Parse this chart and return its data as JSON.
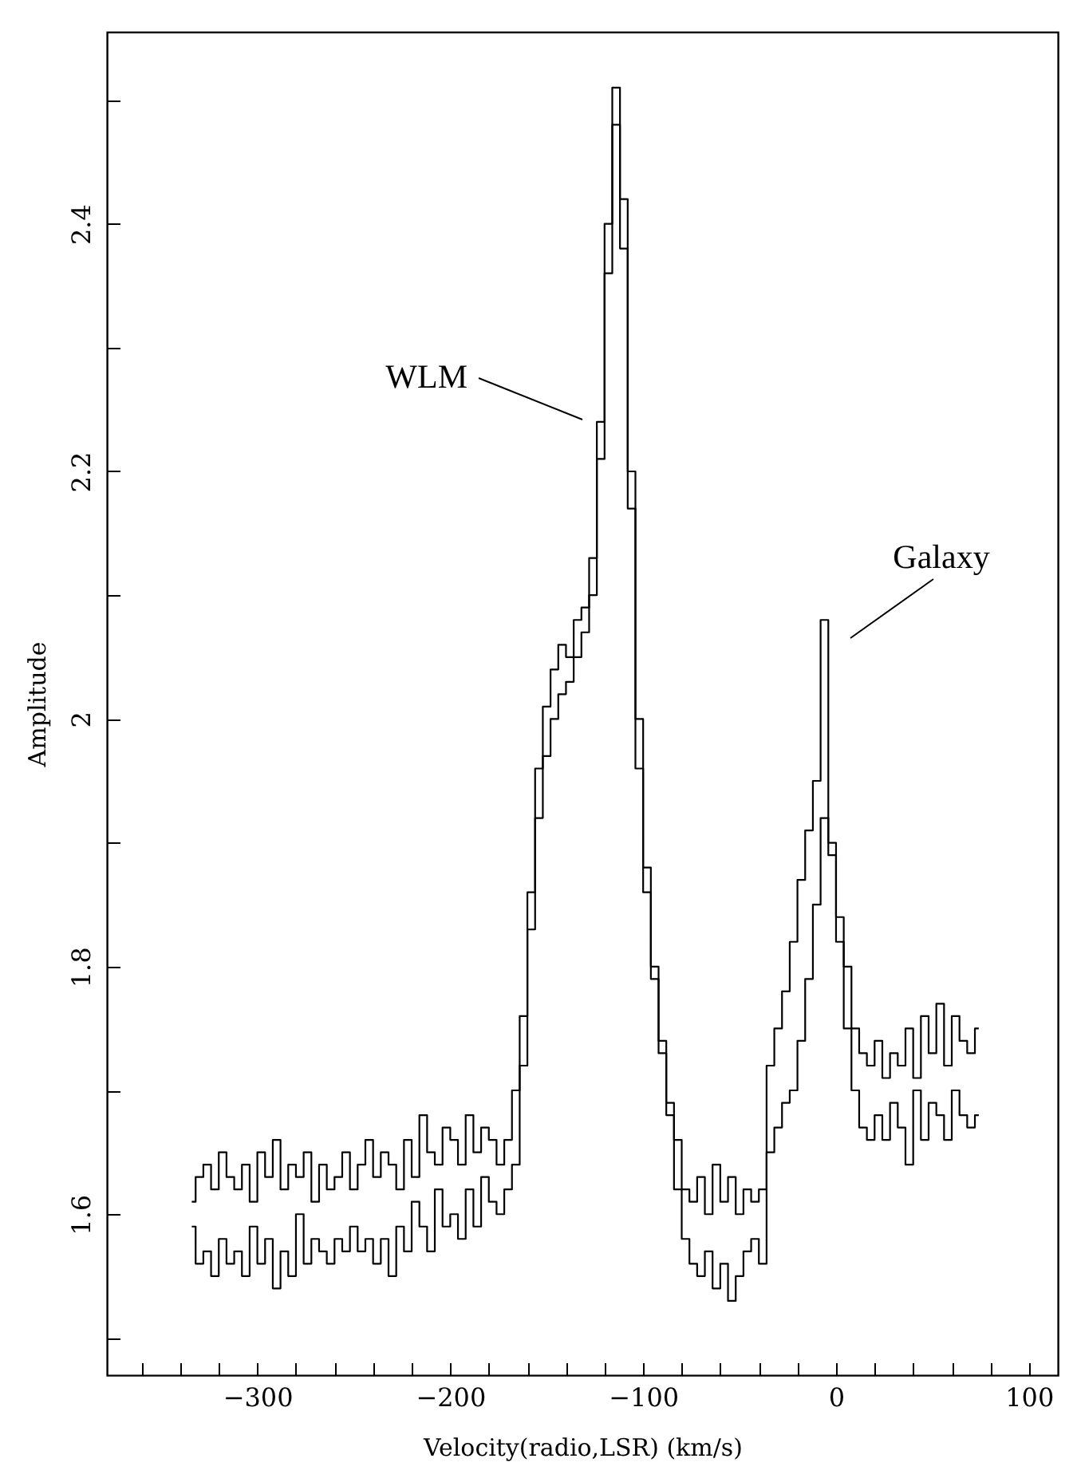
{
  "chart_data": {
    "type": "step",
    "xlabel": "Velocity(radio,LSR) (km/s)",
    "ylabel": "Amplitude",
    "xlim": [
      -378,
      115
    ],
    "ylim": [
      1.47,
      2.555
    ],
    "xticks": [
      {
        "value": -360,
        "label": null
      },
      {
        "value": -340,
        "label": null
      },
      {
        "value": -320,
        "label": null
      },
      -300,
      {
        "value": -280,
        "label": null
      },
      {
        "value": -260,
        "label": null
      },
      {
        "value": -240,
        "label": null
      },
      {
        "value": -220,
        "label": null
      },
      -200,
      {
        "value": -180,
        "label": null
      },
      {
        "value": -160,
        "label": null
      },
      {
        "value": -140,
        "label": null
      },
      {
        "value": -120,
        "label": null
      },
      -100,
      {
        "value": -80,
        "label": null
      },
      {
        "value": -60,
        "label": null
      },
      {
        "value": -40,
        "label": null
      },
      {
        "value": -20,
        "label": null
      },
      0,
      {
        "value": 20,
        "label": null
      },
      {
        "value": 40,
        "label": null
      },
      {
        "value": 60,
        "label": null
      },
      {
        "value": 80,
        "label": null
      },
      100
    ],
    "yticks": [
      {
        "value": 1.5,
        "label": null
      },
      1.6,
      {
        "value": 1.7,
        "label": null
      },
      1.8,
      {
        "value": 1.9,
        "label": null
      },
      2,
      {
        "value": 2.1,
        "label": null
      },
      2.2,
      {
        "value": 2.3,
        "label": null
      },
      2.4,
      {
        "value": 2.5,
        "label": null
      }
    ],
    "annotations": [
      "WLM",
      "Galaxy"
    ],
    "x": [
      -334,
      -330,
      -326,
      -322,
      -318,
      -314,
      -310,
      -306,
      -302,
      -298,
      -294,
      -290,
      -286,
      -282,
      -278,
      -274,
      -270,
      -266,
      -262,
      -258,
      -254,
      -250,
      -246,
      -242,
      -238,
      -234,
      -230,
      -226,
      -222,
      -218,
      -214,
      -210,
      -206,
      -202,
      -198,
      -194,
      -190,
      -186,
      -182,
      -178,
      -174,
      -170,
      -166,
      -162,
      -158,
      -154,
      -150,
      -146,
      -142,
      -138,
      -134,
      -130,
      -126,
      -122,
      -118,
      -114,
      -110,
      -106,
      -102,
      -98,
      -94,
      -90,
      -86,
      -82,
      -78,
      -74,
      -70,
      -66,
      -62,
      -58,
      -54,
      -50,
      -46,
      -42,
      -38,
      -34,
      -30,
      -26,
      -22,
      -18,
      -14,
      -10,
      -6,
      -2,
      2,
      6,
      10,
      14,
      18,
      22,
      26,
      30,
      34,
      38,
      42,
      46,
      50,
      54,
      58,
      62,
      66,
      70,
      74
    ],
    "series": [
      {
        "color": "#000000",
        "values": [
          1.61,
          1.63,
          1.64,
          1.62,
          1.65,
          1.63,
          1.62,
          1.64,
          1.61,
          1.65,
          1.63,
          1.66,
          1.62,
          1.64,
          1.63,
          1.65,
          1.61,
          1.64,
          1.62,
          1.63,
          1.65,
          1.62,
          1.64,
          1.66,
          1.63,
          1.65,
          1.64,
          1.62,
          1.66,
          1.63,
          1.68,
          1.65,
          1.64,
          1.67,
          1.66,
          1.64,
          1.68,
          1.65,
          1.67,
          1.66,
          1.64,
          1.66,
          1.7,
          1.76,
          1.86,
          1.96,
          2.01,
          2.04,
          2.06,
          2.05,
          2.08,
          2.09,
          2.13,
          2.21,
          2.36,
          2.51,
          2.38,
          2.17,
          1.96,
          1.86,
          1.79,
          1.74,
          1.69,
          1.66,
          1.62,
          1.61,
          1.63,
          1.6,
          1.64,
          1.61,
          1.63,
          1.6,
          1.62,
          1.61,
          1.62,
          1.65,
          1.67,
          1.69,
          1.7,
          1.74,
          1.79,
          1.85,
          1.92,
          1.9,
          1.82,
          1.75,
          1.7,
          1.67,
          1.66,
          1.68,
          1.66,
          1.69,
          1.67,
          1.64,
          1.7,
          1.66,
          1.69,
          1.68,
          1.66,
          1.7,
          1.68,
          1.67,
          1.68
        ]
      },
      {
        "color": "#000000",
        "values": [
          1.59,
          1.56,
          1.57,
          1.55,
          1.58,
          1.56,
          1.57,
          1.55,
          1.59,
          1.56,
          1.58,
          1.54,
          1.57,
          1.55,
          1.6,
          1.56,
          1.58,
          1.57,
          1.56,
          1.58,
          1.57,
          1.59,
          1.57,
          1.58,
          1.56,
          1.58,
          1.55,
          1.59,
          1.57,
          1.61,
          1.59,
          1.57,
          1.62,
          1.59,
          1.6,
          1.58,
          1.62,
          1.59,
          1.63,
          1.61,
          1.6,
          1.62,
          1.64,
          1.72,
          1.83,
          1.92,
          1.97,
          2.0,
          2.02,
          2.03,
          2.05,
          2.07,
          2.1,
          2.24,
          2.4,
          2.48,
          2.42,
          2.2,
          2.0,
          1.88,
          1.8,
          1.73,
          1.68,
          1.62,
          1.58,
          1.56,
          1.55,
          1.57,
          1.54,
          1.56,
          1.53,
          1.55,
          1.57,
          1.58,
          1.56,
          1.72,
          1.75,
          1.78,
          1.82,
          1.87,
          1.91,
          1.95,
          2.08,
          1.89,
          1.84,
          1.8,
          1.75,
          1.73,
          1.72,
          1.74,
          1.71,
          1.73,
          1.72,
          1.75,
          1.71,
          1.76,
          1.73,
          1.77,
          1.72,
          1.76,
          1.74,
          1.73,
          1.75
        ]
      }
    ]
  }
}
